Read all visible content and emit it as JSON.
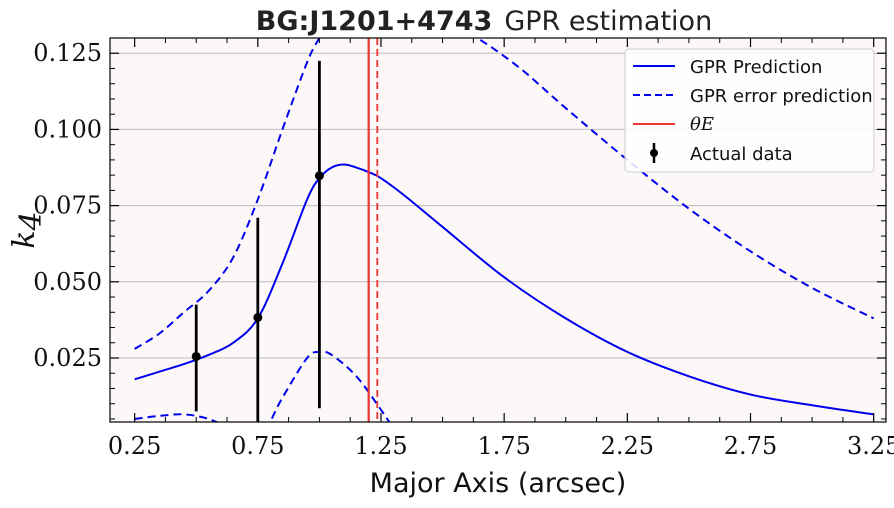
{
  "chart_data": {
    "type": "line",
    "title_bold": "BG:J1201+4743",
    "title_rest": "GPR estimation",
    "xlabel": "Major Axis (arcsec)",
    "ylabel_main": "k",
    "ylabel_sub": "4",
    "xlim": [
      0.15,
      3.3
    ],
    "ylim": [
      0.004,
      0.13
    ],
    "xticks": [
      0.25,
      0.75,
      1.25,
      1.75,
      2.25,
      2.75,
      3.25
    ],
    "xtick_labels": [
      "0.25",
      "0.75",
      "1.25",
      "1.75",
      "2.25",
      "2.75",
      "3.25"
    ],
    "yticks": [
      0.025,
      0.05,
      0.075,
      0.1,
      0.125
    ],
    "ytick_labels": [
      "0.025",
      "0.050",
      "0.075",
      "0.100",
      "0.125"
    ],
    "grid": "horizontal",
    "legend_position": "top-right",
    "colors": {
      "prediction": "#0000ee",
      "theta": "#ee3333",
      "data": "#000000",
      "plot_bg": "#fdf8f8"
    },
    "series": [
      {
        "name": "GPR Prediction",
        "style": "solid",
        "x": [
          0.25,
          0.35,
          0.45,
          0.55,
          0.65,
          0.75,
          0.85,
          0.95,
          1.0,
          1.05,
          1.1,
          1.15,
          1.2,
          1.25,
          1.35,
          1.5,
          1.75,
          2.0,
          2.25,
          2.5,
          2.75,
          3.0,
          3.25
        ],
        "y": [
          0.018,
          0.0205,
          0.023,
          0.026,
          0.03,
          0.038,
          0.056,
          0.077,
          0.084,
          0.0875,
          0.0885,
          0.0875,
          0.086,
          0.084,
          0.078,
          0.068,
          0.0515,
          0.038,
          0.027,
          0.019,
          0.013,
          0.0095,
          0.0065
        ]
      },
      {
        "name": "GPR error prediction",
        "style": "dashed",
        "x": [
          0.25,
          0.35,
          0.45,
          0.55,
          0.65,
          0.75,
          0.85,
          0.95,
          1.0,
          1.05,
          1.1,
          1.2,
          1.4,
          1.6,
          1.8,
          2.0,
          2.25,
          2.5,
          2.75,
          3.0,
          3.25
        ],
        "y": [
          0.028,
          0.033,
          0.04,
          0.047,
          0.058,
          0.077,
          0.1,
          0.122,
          0.13,
          0.136,
          0.14,
          0.143,
          0.14,
          0.132,
          0.121,
          0.107,
          0.09,
          0.074,
          0.06,
          0.048,
          0.038
        ]
      },
      {
        "name": "",
        "style": "dashed",
        "x": [
          0.25,
          0.35,
          0.45,
          0.55,
          0.65,
          0.75,
          0.85,
          0.95,
          1.0,
          1.05,
          1.15,
          1.25,
          1.35,
          1.45
        ],
        "y": [
          0.005,
          0.006,
          0.0065,
          0.005,
          0.0015,
          -0.002,
          0.012,
          0.025,
          0.027,
          0.026,
          0.019,
          0.008,
          -0.004,
          -0.015
        ]
      }
    ],
    "theta_E": {
      "name": "θE",
      "x": 1.2,
      "x_err": 1.235
    },
    "actual_data": {
      "name": "Actual data",
      "x": [
        0.5,
        0.75,
        1.0
      ],
      "y": [
        0.0255,
        0.0383,
        0.0848
      ],
      "yerr_low": [
        0.0075,
        0.004,
        0.0085
      ],
      "yerr_high": [
        0.0425,
        0.071,
        0.1225
      ]
    }
  }
}
